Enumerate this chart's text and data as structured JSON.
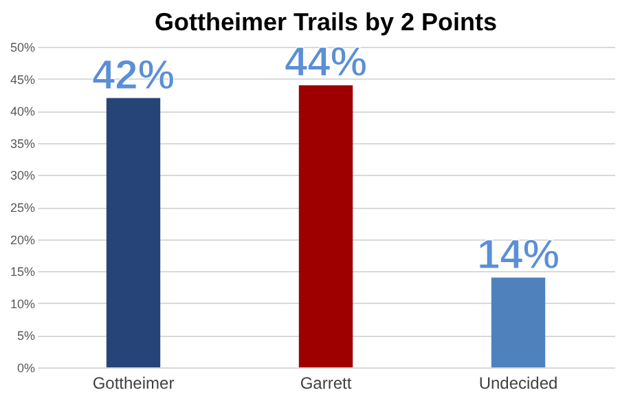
{
  "chart_data": {
    "type": "bar",
    "title": "Gottheimer Trails by 2 Points",
    "categories": [
      "Gottheimer",
      "Garrett",
      "Undecided"
    ],
    "values": [
      42,
      44,
      14
    ],
    "colors": [
      "#264478",
      "#9e0000",
      "#4f81bd"
    ],
    "value_labels": [
      "42%",
      "44%",
      "14%"
    ],
    "ylim": [
      0,
      50
    ],
    "yticks": [
      {
        "value": 0,
        "label": "0%"
      },
      {
        "value": 5,
        "label": "5%"
      },
      {
        "value": 10,
        "label": "10%"
      },
      {
        "value": 15,
        "label": "15%"
      },
      {
        "value": 20,
        "label": "20%"
      },
      {
        "value": 25,
        "label": "25%"
      },
      {
        "value": 30,
        "label": "30%"
      },
      {
        "value": 35,
        "label": "35%"
      },
      {
        "value": 40,
        "label": "40%"
      },
      {
        "value": 45,
        "label": "45%"
      },
      {
        "value": 50,
        "label": "50%"
      }
    ],
    "grid": "y"
  }
}
